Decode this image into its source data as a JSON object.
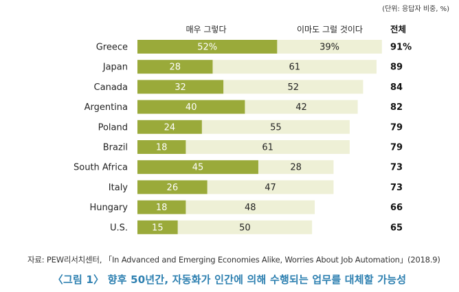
{
  "unit_note": "(단위: 응답자 비중, %)",
  "source_note": "자료: PEW리서치센터, 「In Advanced and Emerging Economies Alike, Worries About Job Automation」(2018.9)",
  "figure_caption": "〈그림 1〉 향후 50년간, 자동화가 인간에 의해 수행되는 업무를 대체할 가능성",
  "colors": {
    "strong": "#9aaa3a",
    "somewhat": "#eef0d6",
    "strong_label": "#ffffff",
    "somewhat_label": "#222222"
  },
  "chart_data": {
    "type": "bar",
    "orientation": "horizontal",
    "stacked": true,
    "categories": [
      "Greece",
      "Japan",
      "Canada",
      "Argentina",
      "Poland",
      "Brazil",
      "South Africa",
      "Italy",
      "Hungary",
      "U.S."
    ],
    "series": [
      {
        "name": "매우 그렇다",
        "values": [
          52,
          28,
          32,
          40,
          24,
          18,
          45,
          26,
          18,
          15
        ],
        "labels": [
          "52%",
          "28",
          "32",
          "40",
          "24",
          "18",
          "45",
          "26",
          "18",
          "15"
        ]
      },
      {
        "name": "이마도 그럴 것이다",
        "values": [
          39,
          61,
          52,
          42,
          55,
          61,
          28,
          47,
          48,
          50
        ],
        "labels": [
          "39%",
          "61",
          "52",
          "42",
          "55",
          "61",
          "28",
          "47",
          "48",
          "50"
        ]
      }
    ],
    "total_header": "전체",
    "totals": [
      "91%",
      "89",
      "84",
      "82",
      "79",
      "79",
      "73",
      "73",
      "66",
      "65"
    ],
    "xlim": [
      0,
      100
    ],
    "grid": false,
    "legend": "top"
  }
}
